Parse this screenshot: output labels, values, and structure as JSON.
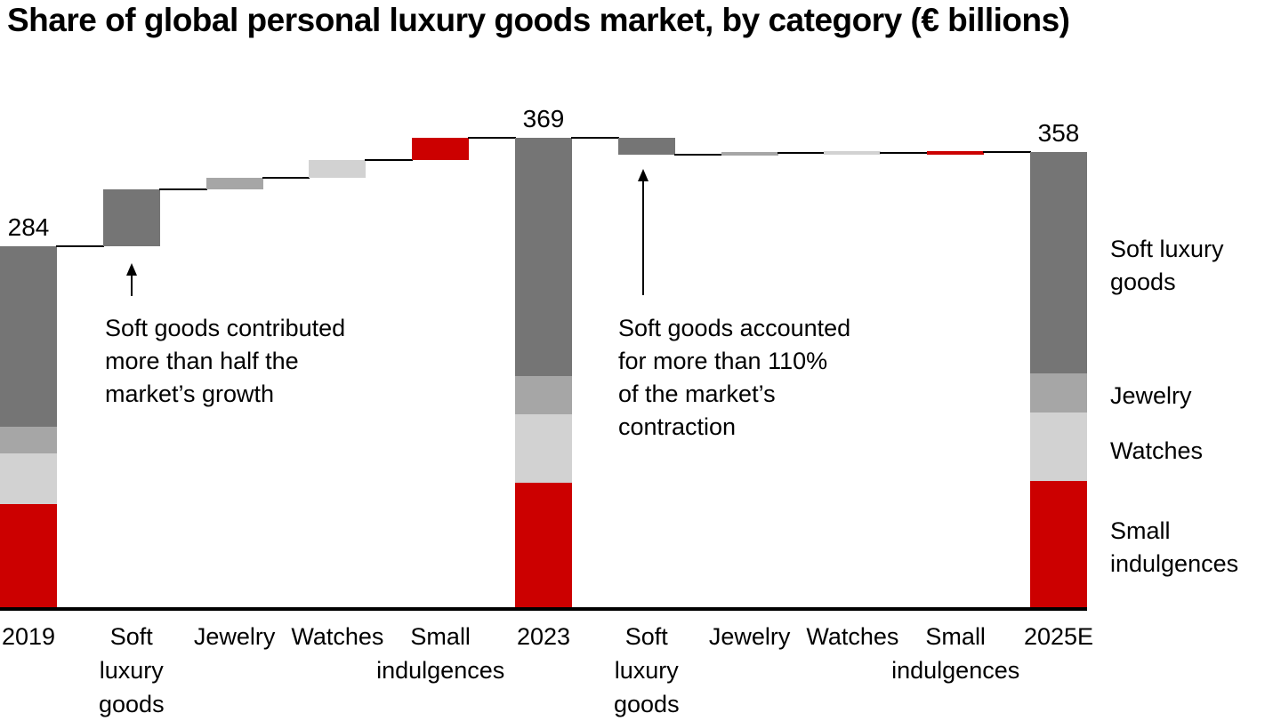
{
  "title": "Share of global personal luxury goods market, by category (€ billions)",
  "chart_data": {
    "type": "waterfall",
    "title": "Share of global personal luxury goods market, by category (€ billions)",
    "unit": "€ billions",
    "ylim": [
      0,
      369
    ],
    "grid": false,
    "legend_position": "right",
    "colors": {
      "soft": "#757575",
      "jewelry": "#a6a6a6",
      "watches": "#d2d2d2",
      "small": "#cc0000",
      "connector": "#000000",
      "axis": "#000000"
    },
    "columns": [
      {
        "kind": "total",
        "label": "2019",
        "total": 284,
        "segments": [
          {
            "category": "soft",
            "value": 142
          },
          {
            "category": "jewelry",
            "value": 21
          },
          {
            "category": "watches",
            "value": 40
          },
          {
            "category": "small",
            "value": 81
          }
        ]
      },
      {
        "kind": "delta",
        "label": "Soft\nluxury\ngoods",
        "category": "soft",
        "value": 45
      },
      {
        "kind": "delta",
        "label": "Jewelry",
        "category": "jewelry",
        "value": 9
      },
      {
        "kind": "delta",
        "label": "Watches",
        "category": "watches",
        "value": 14
      },
      {
        "kind": "delta",
        "label": "Small\nindulgences",
        "category": "small",
        "value": 17
      },
      {
        "kind": "total",
        "label": "2023",
        "total": 369,
        "segments": [
          {
            "category": "soft",
            "value": 187
          },
          {
            "category": "jewelry",
            "value": 30
          },
          {
            "category": "watches",
            "value": 54
          },
          {
            "category": "small",
            "value": 98
          }
        ]
      },
      {
        "kind": "delta",
        "label": "Soft\nluxury\ngoods",
        "category": "soft",
        "value": -13
      },
      {
        "kind": "delta",
        "label": "Jewelry",
        "category": "jewelry",
        "value": 1
      },
      {
        "kind": "delta",
        "label": "Watches",
        "category": "watches",
        "value": 0
      },
      {
        "kind": "delta",
        "label": "Small\nindulgences",
        "category": "small",
        "value": 1
      },
      {
        "kind": "total",
        "label": "2025E",
        "total": 358,
        "segments": [
          {
            "category": "soft",
            "value": 174
          },
          {
            "category": "jewelry",
            "value": 31
          },
          {
            "category": "watches",
            "value": 54
          },
          {
            "category": "small",
            "value": 99
          }
        ]
      }
    ],
    "annotations": [
      {
        "id": "growth",
        "text": "Soft goods contributed\nmore than half the\nmarket’s growth"
      },
      {
        "id": "contraction",
        "text": "Soft goods accounted\nfor more than 110%\nof the market’s\ncontraction"
      }
    ],
    "legend": [
      {
        "category": "soft",
        "label": "Soft luxury\ngoods"
      },
      {
        "category": "jewelry",
        "label": "Jewelry"
      },
      {
        "category": "watches",
        "label": "Watches"
      },
      {
        "category": "small",
        "label": "Small\nindulgences"
      }
    ]
  }
}
